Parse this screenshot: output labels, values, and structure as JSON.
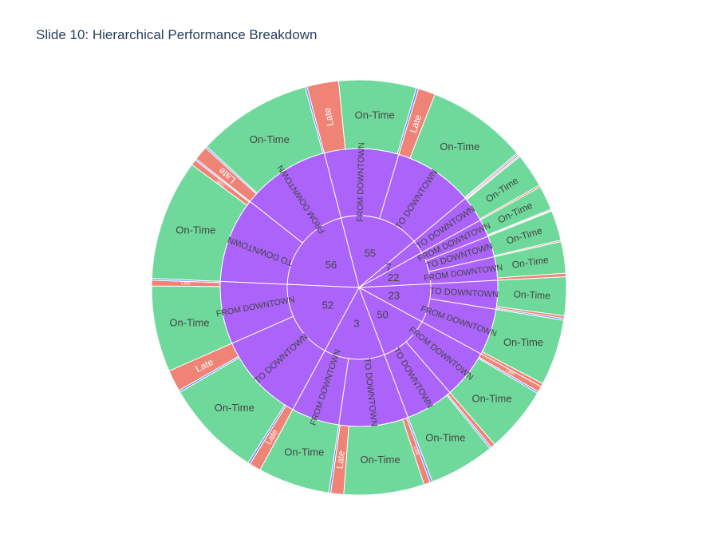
{
  "title": "Slide 10: Hierarchical Performance Breakdown",
  "colors": {
    "route": "#ab63fa",
    "on_time": "#6fd99c",
    "late": "#ef8375",
    "early": "#6f8ff0",
    "text_dark": "#444444",
    "text_light": "#ffffff"
  },
  "chart_data": {
    "type": "sunburst",
    "title": "Slide 10: Hierarchical Performance Breakdown",
    "levels": [
      "route",
      "direction",
      "status"
    ],
    "nodes": [
      {
        "label": "56",
        "children": [
          {
            "label": "TO DOWNTOWN",
            "children": [
              {
                "label": "On-Time",
                "value": 42
              },
              {
                "label": "Late",
                "value": 2
              },
              {
                "label": "",
                "value": 0.5
              }
            ]
          },
          {
            "label": "FROM DOWNTOWN",
            "children": [
              {
                "label": "Late",
                "value": 5
              },
              {
                "label": "",
                "value": 0.6
              },
              {
                "label": "On-Time",
                "value": 40
              },
              {
                "label": "",
                "value": 0.7
              }
            ]
          }
        ]
      },
      {
        "label": "55",
        "children": [
          {
            "label": "FROM DOWNTOWN",
            "children": [
              {
                "label": "Late",
                "value": 11
              },
              {
                "label": "On-Time",
                "value": 27
              },
              {
                "label": "",
                "value": 0.8
              }
            ]
          },
          {
            "label": "TO DOWNTOWN",
            "children": [
              {
                "label": "Late",
                "value": 6
              },
              {
                "label": "On-Time",
                "value": 35
              },
              {
                "label": "",
                "value": 0.5
              }
            ]
          }
        ]
      },
      {
        "label": "7",
        "children": [
          {
            "label": "TO DOWNTOWN",
            "children": [
              {
                "label": "Late",
                "value": 0.6
              },
              {
                "label": "",
                "value": 0.4
              },
              {
                "label": "On-Time",
                "value": 12
              },
              {
                "label": "Late",
                "value": 0.6
              }
            ]
          }
        ]
      },
      {
        "label": "22",
        "children": [
          {
            "label": "FROM DOWNTOWN",
            "children": [
              {
                "label": "On-Time",
                "value": 8.5
              },
              {
                "label": "Late",
                "value": 0.4
              },
              {
                "label": "",
                "value": 0.3
              }
            ]
          },
          {
            "label": "TO DOWNTOWN",
            "children": [
              {
                "label": "On-Time",
                "value": 10.5
              },
              {
                "label": "Late",
                "value": 0.5
              }
            ]
          },
          {
            "label": "FROM DOWNTOWN",
            "children": [
              {
                "label": "On-Time",
                "value": 11
              },
              {
                "label": "Late",
                "value": 1.2
              }
            ]
          }
        ]
      },
      {
        "label": "23",
        "children": [
          {
            "label": "TO DOWNTOWN",
            "children": [
              {
                "label": "On-Time",
                "value": 13.5
              },
              {
                "label": "Late",
                "value": 0.9
              },
              {
                "label": "",
                "value": 0.6
              }
            ]
          },
          {
            "label": "FROM DOWNTOWN",
            "children": [
              {
                "label": "On-Time",
                "value": 23
              },
              {
                "label": "Late",
                "value": 1.2
              }
            ]
          }
        ]
      },
      {
        "label": "50",
        "children": [
          {
            "label": "FROM DOWNTOWN",
            "children": [
              {
                "label": "Late",
                "value": 2
              },
              {
                "label": "",
                "value": 0.6
              },
              {
                "label": "On-Time",
                "value": 23
              }
            ]
          },
          {
            "label": "TO DOWNTOWN",
            "children": [
              {
                "label": "Late",
                "value": 1.5
              },
              {
                "label": "",
                "value": 0.6
              },
              {
                "label": "On-Time",
                "value": 23
              }
            ]
          }
        ]
      },
      {
        "label": "3",
        "children": [
          {
            "label": "TO DOWNTOWN",
            "children": [
              {
                "label": "",
                "value": 0.8
              },
              {
                "label": "Late",
                "value": 2.2
              },
              {
                "label": "On-Time",
                "value": 28
              },
              {
                "label": "Late",
                "value": 4.5
              },
              {
                "label": "",
                "value": 0.7
              }
            ]
          },
          {
            "label": "FROM DOWNTOWN",
            "children": [
              {
                "label": "On-Time",
                "value": 25
              }
            ]
          }
        ]
      },
      {
        "label": "52",
        "children": [
          {
            "label": "TO DOWNTOWN",
            "children": [
              {
                "label": "Late",
                "value": 4
              },
              {
                "label": "",
                "value": 0.8
              },
              {
                "label": "On-Time",
                "value": 34
              },
              {
                "label": "",
                "value": 0.7
              },
              {
                "label": "Late",
                "value": 7.5
              }
            ]
          },
          {
            "label": "FROM DOWNTOWN",
            "children": [
              {
                "label": "On-Time",
                "value": 30
              },
              {
                "label": "Late",
                "value": 2
              },
              {
                "label": "",
                "value": 0.6
              }
            ]
          }
        ]
      }
    ]
  }
}
